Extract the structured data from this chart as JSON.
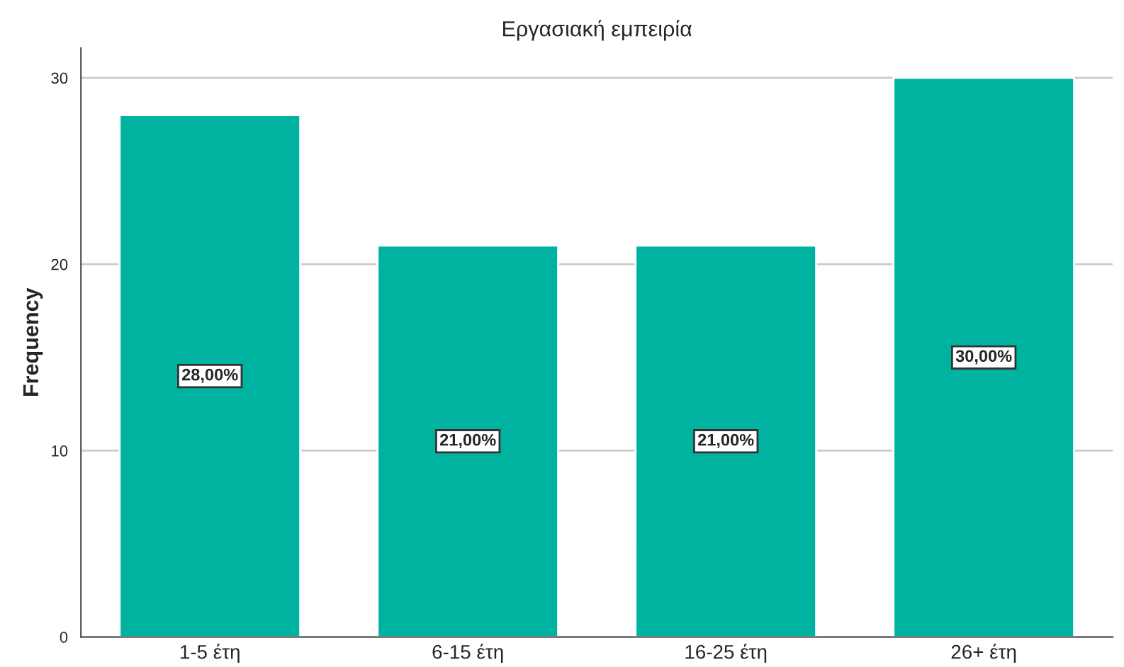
{
  "chart_data": {
    "type": "bar",
    "title": "Εργασιακή εμπειρία",
    "ylabel": "Frequency",
    "categories": [
      "1-5 έτη",
      "6-15 έτη",
      "16-25 έτη",
      "26+ έτη"
    ],
    "values": [
      28,
      21,
      21,
      30
    ],
    "value_labels": [
      "28,00%",
      "21,00%",
      "21,00%",
      "30,00%"
    ],
    "color": "#00b3a0",
    "ylim": [
      0,
      31.6
    ],
    "yticks": [
      0,
      10,
      20,
      30
    ],
    "grid": "y"
  }
}
